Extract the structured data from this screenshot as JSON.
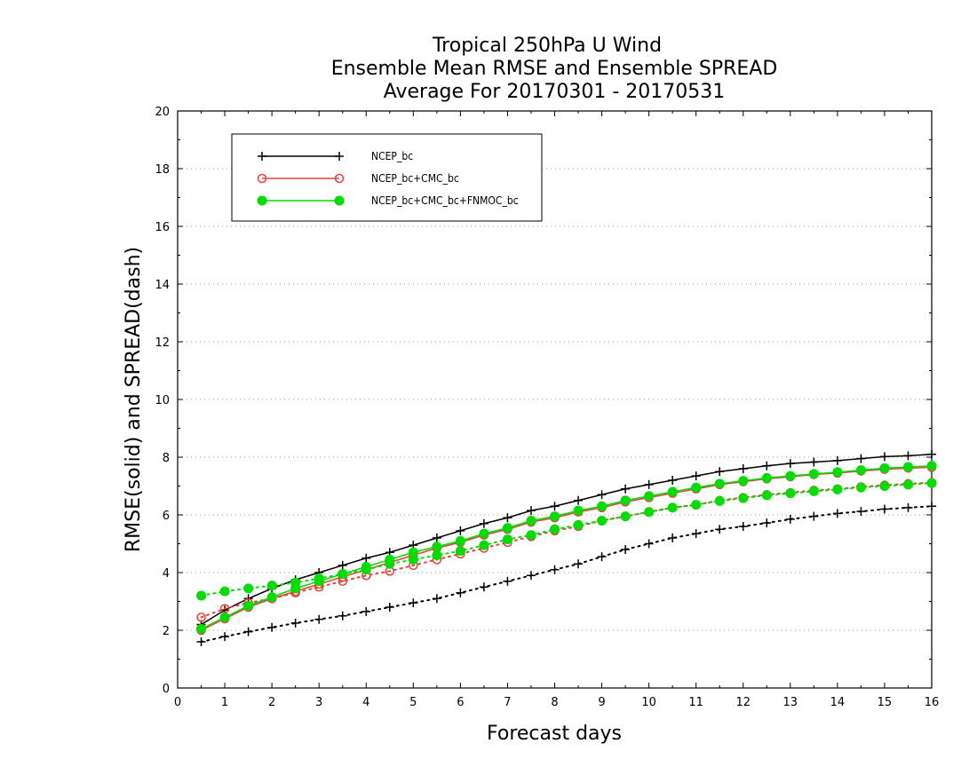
{
  "chart_data": {
    "type": "line",
    "title_lines": [
      "Tropical 250hPa U Wind",
      "Ensemble Mean RMSE and Ensemble SPREAD",
      "Average For 20170301 - 20170531"
    ],
    "xlabel": "Forecast days",
    "ylabel": "RMSE(solid) and SPREAD(dash)",
    "xlim": [
      0,
      16
    ],
    "ylim": [
      0,
      20
    ],
    "x_ticks": [
      0,
      1,
      2,
      3,
      4,
      5,
      6,
      7,
      8,
      9,
      10,
      11,
      12,
      13,
      14,
      15,
      16
    ],
    "y_ticks": [
      0,
      2,
      4,
      6,
      8,
      10,
      12,
      14,
      16,
      18,
      20
    ],
    "grid": "horizontal dotted",
    "legend_position": "top-left",
    "x": [
      0.5,
      1,
      1.5,
      2,
      2.5,
      3,
      3.5,
      4,
      4.5,
      5,
      5.5,
      6,
      6.5,
      7,
      7.5,
      8,
      8.5,
      9,
      9.5,
      10,
      10.5,
      11,
      11.5,
      12,
      12.5,
      13,
      13.5,
      14,
      14.5,
      15,
      15.5,
      16
    ],
    "series": [
      {
        "name": "NCEP_bc",
        "color": "#000000",
        "marker": "plus",
        "rmse": [
          2.2,
          2.7,
          3.1,
          3.45,
          3.75,
          4.0,
          4.25,
          4.5,
          4.7,
          4.95,
          5.2,
          5.45,
          5.7,
          5.9,
          6.15,
          6.3,
          6.5,
          6.7,
          6.9,
          7.05,
          7.2,
          7.35,
          7.5,
          7.6,
          7.7,
          7.78,
          7.83,
          7.88,
          7.95,
          8.02,
          8.05,
          8.1
        ],
        "spread": [
          1.6,
          1.78,
          1.95,
          2.1,
          2.25,
          2.38,
          2.5,
          2.65,
          2.8,
          2.95,
          3.1,
          3.3,
          3.5,
          3.7,
          3.9,
          4.1,
          4.3,
          4.55,
          4.8,
          5.0,
          5.2,
          5.35,
          5.5,
          5.6,
          5.72,
          5.85,
          5.95,
          6.05,
          6.12,
          6.2,
          6.25,
          6.3
        ]
      },
      {
        "name": "NCEP_bc+CMC_bc",
        "color": "#e8413a",
        "marker": "open-circle",
        "rmse": [
          2.0,
          2.4,
          2.8,
          3.1,
          3.35,
          3.6,
          3.85,
          4.1,
          4.35,
          4.6,
          4.85,
          5.05,
          5.3,
          5.5,
          5.75,
          5.9,
          6.1,
          6.25,
          6.45,
          6.6,
          6.75,
          6.9,
          7.05,
          7.15,
          7.25,
          7.32,
          7.4,
          7.45,
          7.52,
          7.58,
          7.62,
          7.65
        ],
        "spread": [
          2.45,
          2.75,
          2.95,
          3.1,
          3.3,
          3.5,
          3.7,
          3.9,
          4.05,
          4.25,
          4.45,
          4.65,
          4.85,
          5.05,
          5.25,
          5.45,
          5.6,
          5.8,
          5.95,
          6.1,
          6.25,
          6.35,
          6.5,
          6.6,
          6.7,
          6.77,
          6.85,
          6.9,
          6.97,
          7.03,
          7.08,
          7.12
        ]
      },
      {
        "name": "NCEP_bc+CMC_bc+FNMOC_bc",
        "color": "#00dd00",
        "marker": "filled-circle",
        "rmse": [
          2.05,
          2.45,
          2.85,
          3.15,
          3.45,
          3.7,
          3.95,
          4.2,
          4.45,
          4.7,
          4.9,
          5.1,
          5.35,
          5.55,
          5.8,
          5.95,
          6.15,
          6.3,
          6.5,
          6.65,
          6.8,
          6.95,
          7.08,
          7.18,
          7.28,
          7.35,
          7.42,
          7.48,
          7.55,
          7.62,
          7.66,
          7.7
        ],
        "spread": [
          3.2,
          3.35,
          3.45,
          3.55,
          3.65,
          3.8,
          3.95,
          4.1,
          4.3,
          4.45,
          4.6,
          4.75,
          4.95,
          5.15,
          5.3,
          5.5,
          5.65,
          5.8,
          5.95,
          6.1,
          6.25,
          6.35,
          6.48,
          6.58,
          6.68,
          6.75,
          6.82,
          6.88,
          6.95,
          7.0,
          7.05,
          7.1
        ]
      }
    ]
  }
}
